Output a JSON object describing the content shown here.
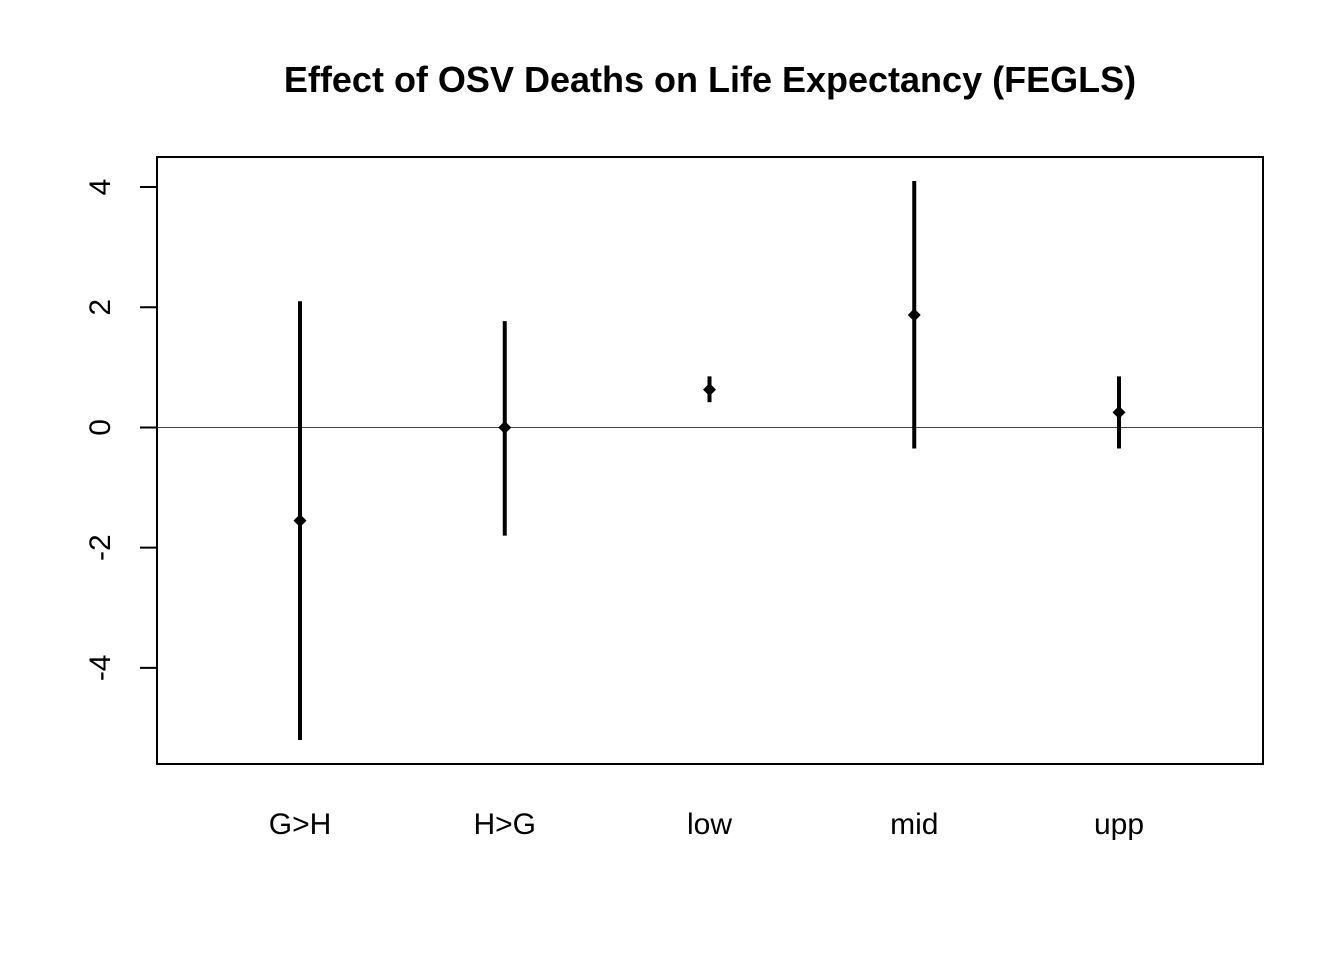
{
  "chart_data": {
    "type": "scatter",
    "title": "Effect of OSV Deaths on Life Expectancy (FEGLS)",
    "xlabel": "",
    "ylabel": "",
    "categories": [
      "G>H",
      "H>G",
      "low",
      "mid",
      "upp"
    ],
    "estimates": [
      -1.55,
      0.0,
      0.63,
      1.87,
      0.25
    ],
    "lower": [
      -5.2,
      -1.8,
      0.42,
      -0.35,
      -0.35
    ],
    "upper": [
      2.1,
      1.77,
      0.85,
      4.1,
      0.85
    ],
    "yticks": [
      -4,
      -2,
      0,
      2,
      4
    ],
    "ylim": [
      -5.6,
      4.5
    ],
    "reference_line_y": 0,
    "grid": false,
    "legend": "none",
    "colors": {
      "marks": "#000000",
      "axis": "#000000",
      "background": "#ffffff"
    }
  }
}
